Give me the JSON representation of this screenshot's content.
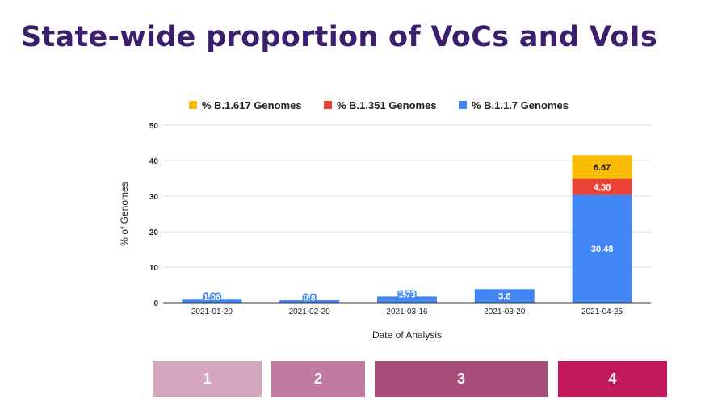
{
  "title": "State-wide proportion of VoCs and VoIs",
  "chart_data": {
    "type": "bar",
    "stacked": true,
    "categories": [
      "2021-01-20",
      "2021-02-20",
      "2021-03-16",
      "2021-03-20",
      "2021-04-25"
    ],
    "series": [
      {
        "name": "% B.1.1.7 Genomes",
        "color": "#4285f4",
        "values": [
          1.06,
          0.8,
          1.73,
          3.8,
          30.48
        ],
        "labels": [
          "1.06",
          "0.8",
          "1.73",
          "3.8",
          "30.48"
        ]
      },
      {
        "name": "% B.1.351 Genomes",
        "color": "#ea4335",
        "values": [
          0,
          0,
          0,
          0,
          4.38
        ],
        "labels": [
          "",
          "",
          "",
          "",
          "4.38"
        ]
      },
      {
        "name": "% B.1.617 Genomes",
        "color": "#fbbc04",
        "values": [
          0,
          0,
          0,
          0,
          6.67
        ],
        "labels": [
          "",
          "",
          "",
          "",
          "6.67"
        ]
      }
    ],
    "legend_order": [
      "% B.1.617 Genomes",
      "% B.1.351 Genomes",
      "% B.1.1.7 Genomes"
    ],
    "legend_position": "top",
    "xlabel": "Date of Analysis",
    "ylabel": "% of Genomes",
    "ylim": [
      0,
      50
    ],
    "yticks": [
      0,
      10,
      20,
      30,
      40,
      50
    ],
    "grid": true
  },
  "steps": [
    {
      "label": "1",
      "color": "#d5a6c0"
    },
    {
      "label": "2",
      "color": "#c27ba0"
    },
    {
      "label": "3",
      "color": "#a64d79"
    },
    {
      "label": "4",
      "color": "#c2185b"
    }
  ]
}
